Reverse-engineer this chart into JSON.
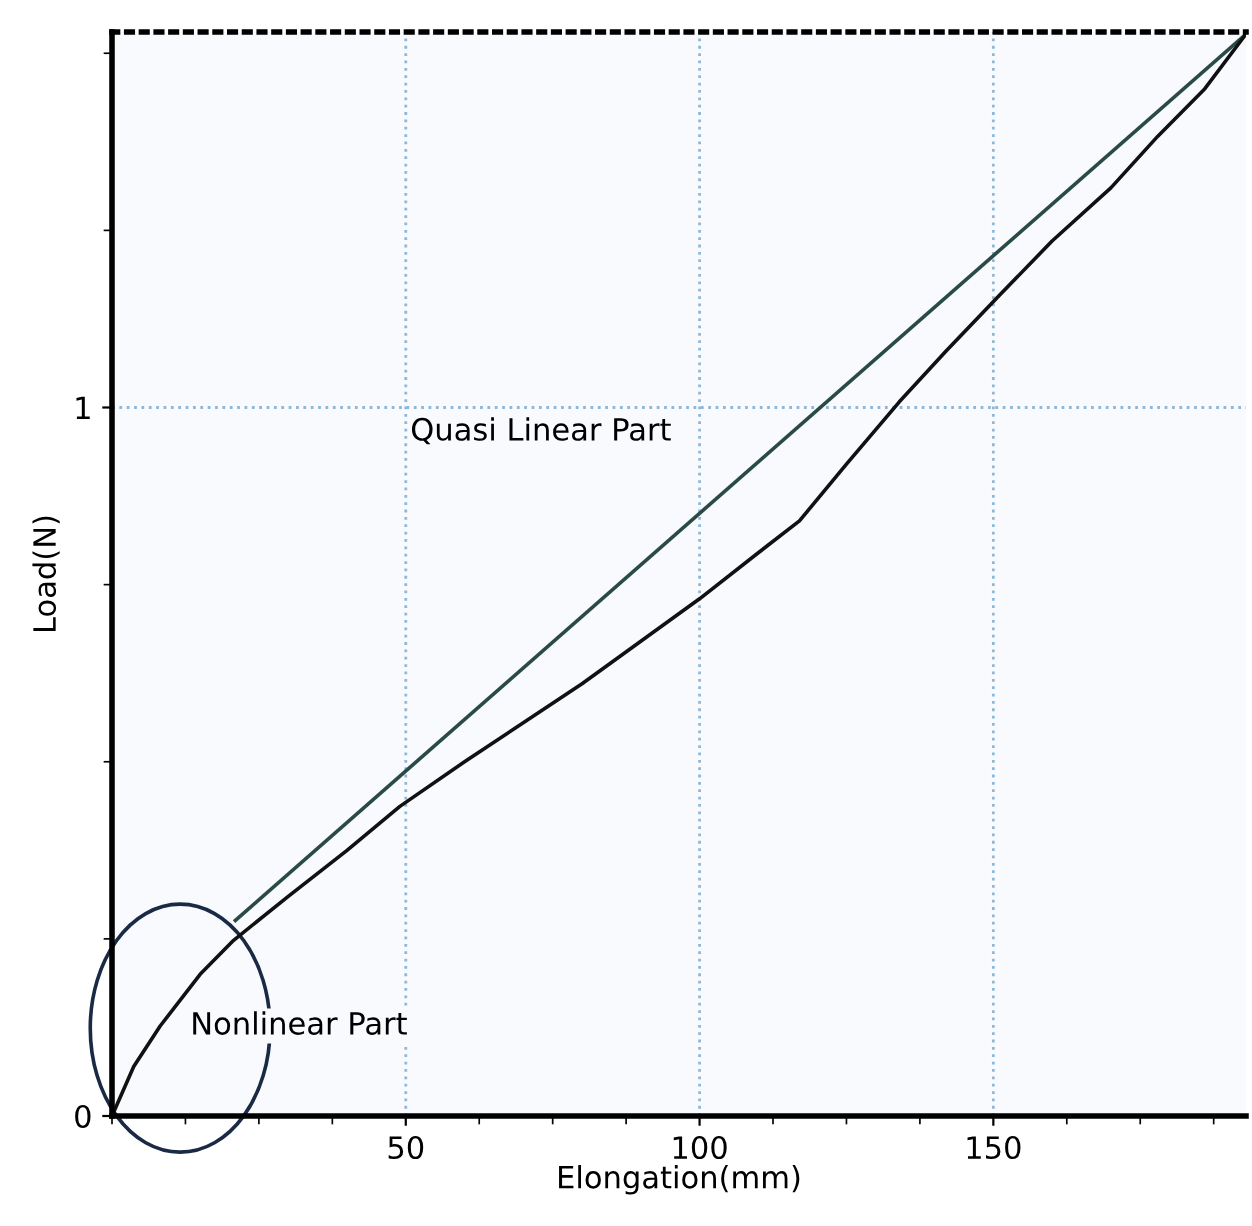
{
  "chart_data": {
    "type": "line",
    "xlabel": "Elongation(mm)",
    "ylabel": "Load(N)",
    "xlim": [
      0,
      193
    ],
    "ylim": [
      0,
      1.53
    ],
    "xticks": [
      50,
      100,
      150
    ],
    "yticks": [
      0,
      1
    ],
    "grid": true,
    "marker": "none",
    "line_style": "solid",
    "series": [
      {
        "color": "#2a4a48",
        "x": [
          21,
          193
        ],
        "values": [
          0.276,
          1.527
        ]
      },
      {
        "color": "#111111",
        "x": [
          0,
          3.7,
          8.2,
          15,
          20.7,
          30,
          40,
          49,
          60,
          70,
          80,
          90,
          100,
          110,
          117,
          125,
          134,
          142,
          151,
          160,
          170,
          178,
          186,
          193
        ],
        "values": [
          0,
          0.07,
          0.127,
          0.2,
          0.248,
          0.31,
          0.375,
          0.437,
          0.5,
          0.555,
          0.61,
          0.67,
          0.73,
          0.795,
          0.84,
          0.92,
          1.008,
          1.08,
          1.158,
          1.235,
          1.31,
          1.383,
          1.45,
          1.527
        ]
      }
    ],
    "annotations": [
      "Quasi Linear Part",
      "Nonlinear Part"
    ]
  }
}
